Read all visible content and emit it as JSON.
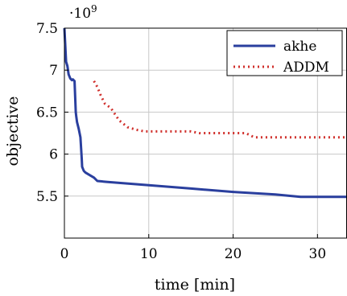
{
  "chart_data": {
    "type": "line",
    "title": "",
    "xlabel": "time [min]",
    "ylabel": "objective",
    "y_multiplier": "·10",
    "y_multiplier_exp": "9",
    "xlim": [
      0,
      33.5
    ],
    "ylim": [
      5.0,
      7.5
    ],
    "x_ticks": [
      0,
      10,
      20,
      30
    ],
    "x_tick_labels": [
      "0",
      "10",
      "20",
      "30"
    ],
    "y_ticks": [
      5.5,
      6.0,
      6.5,
      7.0,
      7.5
    ],
    "y_tick_labels": [
      "5.5",
      "6",
      "6.5",
      "7",
      "7.5"
    ],
    "grid": true,
    "legend_position": "top-right",
    "series": [
      {
        "name": "akhe",
        "color": "#2a3f9e",
        "line_style": "solid",
        "x": [
          0,
          0.2,
          0.35,
          0.5,
          0.7,
          0.9,
          1.0,
          1.2,
          1.35,
          1.4,
          1.5,
          1.7,
          1.9,
          2.05,
          2.1,
          2.3,
          2.5,
          3.0,
          3.5,
          3.9,
          5.0,
          10.0,
          15.0,
          20.0,
          25.0,
          28.0,
          30.0,
          33.5
        ],
        "y": [
          7.5,
          7.1,
          7.05,
          6.95,
          6.9,
          6.88,
          6.89,
          6.87,
          6.5,
          6.45,
          6.38,
          6.3,
          6.2,
          5.95,
          5.85,
          5.8,
          5.78,
          5.75,
          5.72,
          5.68,
          5.67,
          5.63,
          5.59,
          5.55,
          5.52,
          5.49,
          5.49,
          5.49
        ]
      },
      {
        "name": "ADDM",
        "color": "#d0302c",
        "line_style": "dotted",
        "x": [
          3.5,
          3.9,
          4.3,
          4.8,
          5.5,
          6.5,
          7.5,
          8.5,
          9.5,
          12.0,
          15.0,
          16.0,
          20.0,
          21.5,
          22.5,
          25.0,
          30.0,
          33.5
        ],
        "y": [
          6.87,
          6.8,
          6.7,
          6.6,
          6.55,
          6.4,
          6.32,
          6.29,
          6.27,
          6.27,
          6.27,
          6.25,
          6.25,
          6.25,
          6.2,
          6.2,
          6.2,
          6.2
        ]
      }
    ]
  }
}
